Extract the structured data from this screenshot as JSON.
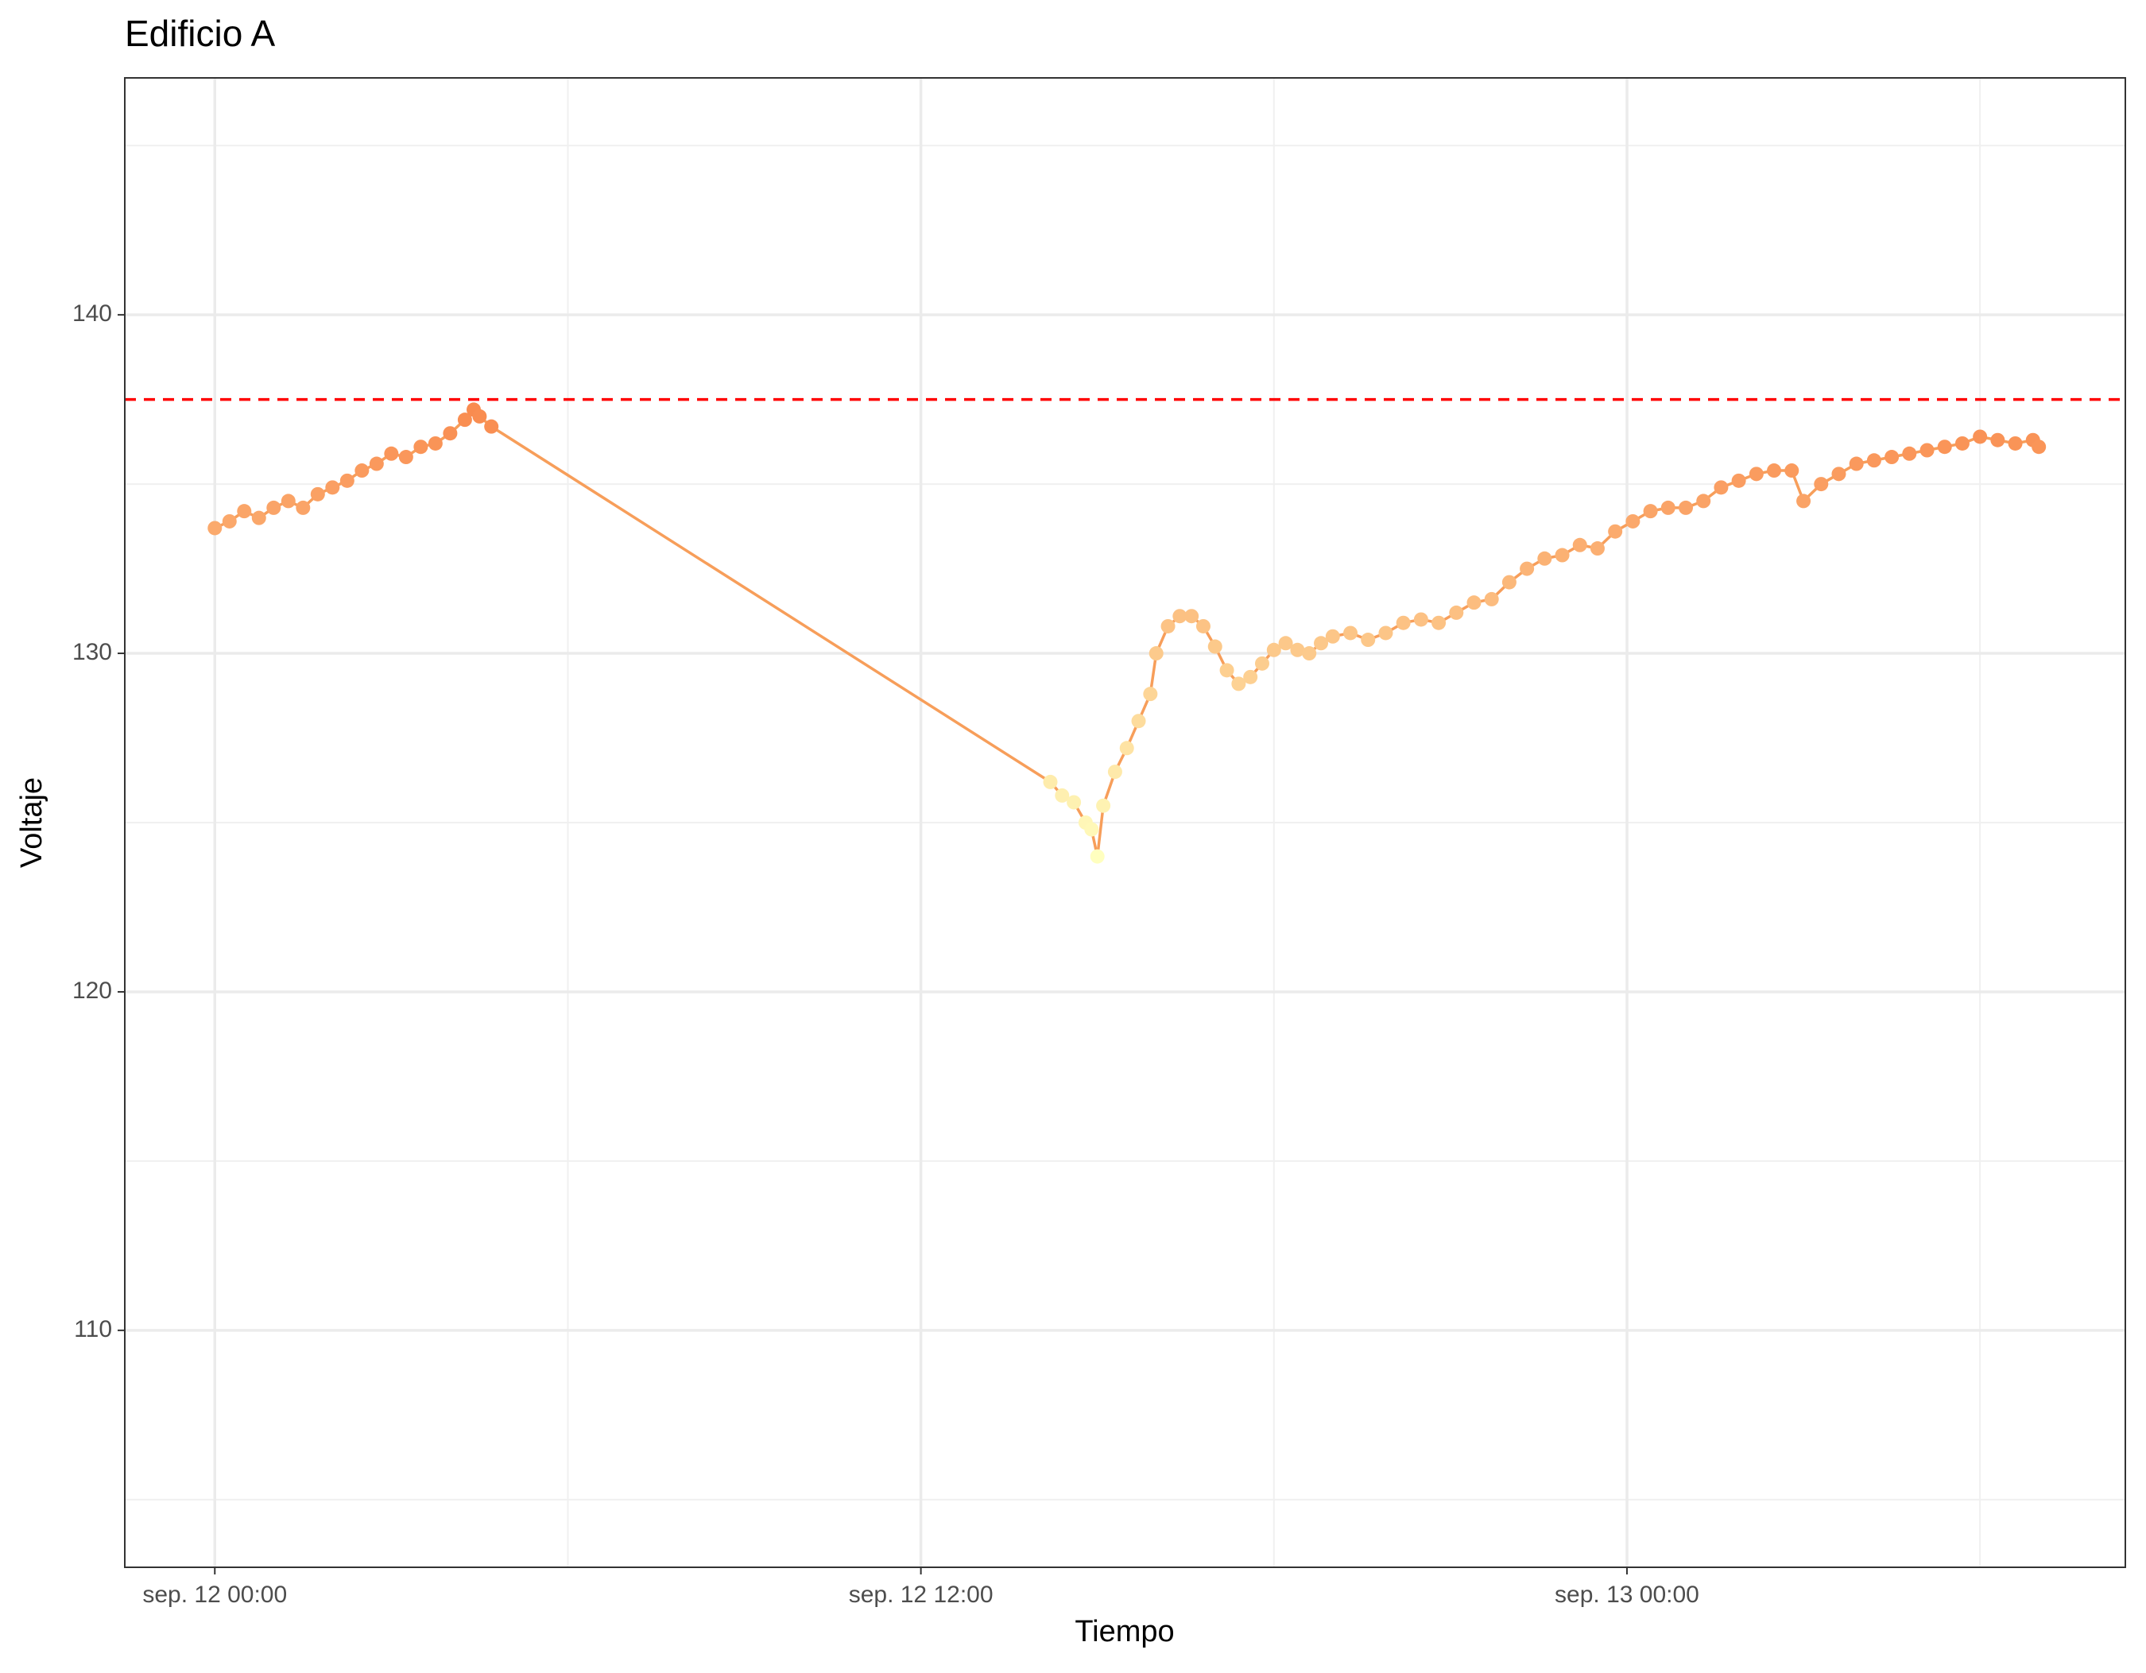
{
  "chart_data": {
    "type": "line",
    "title": "Edificio A",
    "x_label": "Tiempo",
    "y_label": "Voltaje",
    "xlim": [
      -1.53,
      32.47
    ],
    "ylim": [
      103,
      147
    ],
    "xticks": [
      {
        "value": 0,
        "label": "sep. 12 00:00"
      },
      {
        "value": 12,
        "label": "sep. 12 12:00"
      },
      {
        "value": 24,
        "label": "sep. 13 00:00"
      }
    ],
    "x_minor_ticks": [
      6,
      18,
      30
    ],
    "yticks": [
      110,
      120,
      130,
      140
    ],
    "y_minor_ticks": [
      105,
      115,
      125,
      135,
      145
    ],
    "grid": true,
    "points": true,
    "line_color": "#f79e5a",
    "color_scale": {
      "low": "#ffffbf",
      "high": "#f98b4f"
    },
    "hline": {
      "value": 137.5,
      "color": "#ff0000",
      "dashed": true
    },
    "series": [
      {
        "x": [
          0,
          0.25,
          0.5,
          0.75,
          1.0,
          1.25,
          1.5,
          1.75,
          2.0,
          2.25,
          2.5,
          2.75,
          3.0,
          3.25,
          3.5,
          3.75,
          4.0,
          4.25,
          4.4,
          4.5,
          4.7,
          14.2,
          14.4,
          14.6,
          14.8,
          14.9,
          15.0,
          15.1,
          15.3,
          15.5,
          15.7,
          15.9,
          16.0,
          16.2,
          16.4,
          16.6,
          16.8,
          17.0,
          17.2,
          17.4,
          17.6,
          17.8,
          18.0,
          18.2,
          18.4,
          18.6,
          18.8,
          19.0,
          19.3,
          19.6,
          19.9,
          20.2,
          20.5,
          20.8,
          21.1,
          21.4,
          21.7,
          22.0,
          22.3,
          22.6,
          22.9,
          23.2,
          23.5,
          23.8,
          24.1,
          24.4,
          24.7,
          25.0,
          25.3,
          25.6,
          25.9,
          26.2,
          26.5,
          26.8,
          27.0,
          27.3,
          27.6,
          27.9,
          28.2,
          28.5,
          28.8,
          29.1,
          29.4,
          29.7,
          30.0,
          30.3,
          30.6,
          30.9,
          31.0
        ],
        "values": [
          133.7,
          133.9,
          134.2,
          134.0,
          134.3,
          134.5,
          134.3,
          134.7,
          134.9,
          135.1,
          135.4,
          135.6,
          135.9,
          135.8,
          136.1,
          136.2,
          136.5,
          136.9,
          137.2,
          137.0,
          136.7,
          126.2,
          125.8,
          125.6,
          125.0,
          124.8,
          124.0,
          125.5,
          126.5,
          127.2,
          128.0,
          128.8,
          130.0,
          130.8,
          131.1,
          131.1,
          130.8,
          130.2,
          129.5,
          129.1,
          129.3,
          129.7,
          130.1,
          130.3,
          130.1,
          130.0,
          130.3,
          130.5,
          130.6,
          130.4,
          130.6,
          130.9,
          131.0,
          130.9,
          131.2,
          131.5,
          131.6,
          132.1,
          132.5,
          132.8,
          132.9,
          133.2,
          133.1,
          133.6,
          133.9,
          134.2,
          134.3,
          134.3,
          134.5,
          134.9,
          135.1,
          135.3,
          135.4,
          135.4,
          134.5,
          135.0,
          135.3,
          135.6,
          135.7,
          135.8,
          135.9,
          136.0,
          136.1,
          136.2,
          136.4,
          136.3,
          136.2,
          136.3,
          136.1
        ]
      }
    ]
  }
}
